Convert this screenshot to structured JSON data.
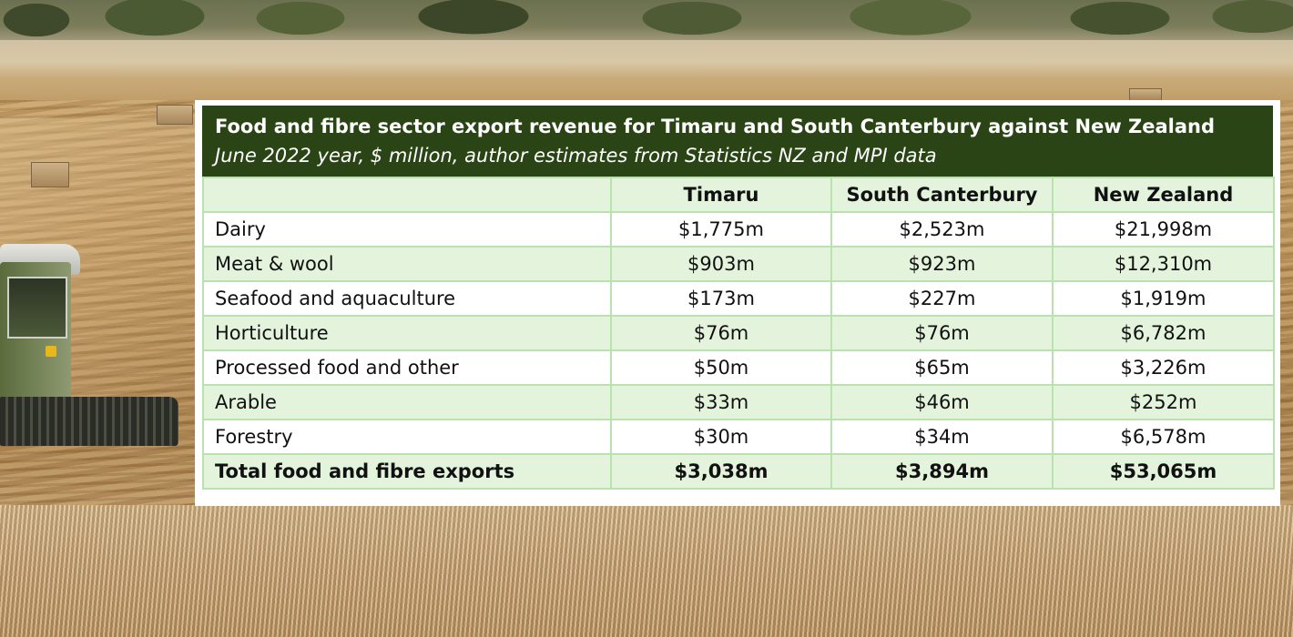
{
  "chart_data": {
    "type": "table",
    "title": "Food and fibre sector export revenue for Timaru and South Canterbury against New Zealand",
    "subtitle": "June 2022 year, $ million, author estimates from Statistics NZ and MPI data",
    "columns": [
      "",
      "Timaru",
      "South Canterbury",
      "New Zealand"
    ],
    "rows": [
      {
        "label": "Dairy",
        "values": [
          "$1,775m",
          "$2,523m",
          "$21,998m"
        ]
      },
      {
        "label": "Meat & wool",
        "values": [
          "$903m",
          "$923m",
          "$12,310m"
        ]
      },
      {
        "label": "Seafood and aquaculture",
        "values": [
          "$173m",
          "$227m",
          "$1,919m"
        ]
      },
      {
        "label": "Horticulture",
        "values": [
          "$76m",
          "$76m",
          "$6,782m"
        ]
      },
      {
        "label": "Processed food and other",
        "values": [
          "$50m",
          "$65m",
          "$3,226m"
        ]
      },
      {
        "label": "Arable",
        "values": [
          "$33m",
          "$46m",
          "$252m"
        ]
      },
      {
        "label": "Forestry",
        "values": [
          "$30m",
          "$34m",
          "$6,578m"
        ]
      }
    ],
    "total": {
      "label": "Total food and fibre exports",
      "values": [
        "$3,038m",
        "$3,894m",
        "$53,065m"
      ]
    },
    "colors": {
      "title_bg": "#2a4416",
      "band": "#e3f3dc",
      "border": "#b9e2ae"
    }
  }
}
